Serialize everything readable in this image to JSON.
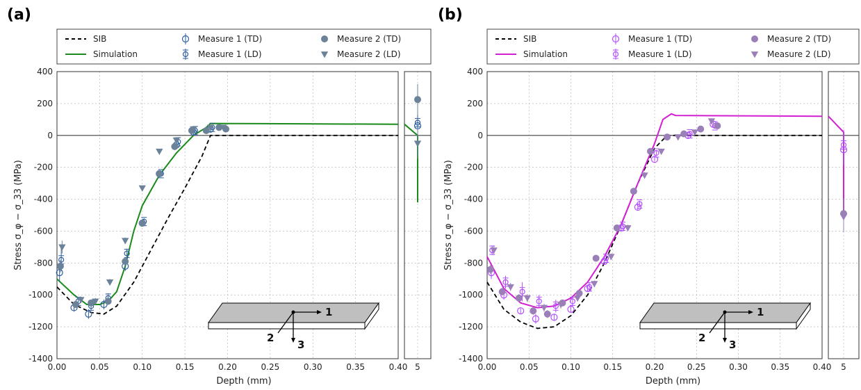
{
  "chart_data": [
    {
      "type": "line",
      "panel_label": "(a)",
      "xlabel": "Depth (mm)",
      "ylabel": "Stress σ_φ − σ_33 (MPa)",
      "ylim": [
        -1400,
        400
      ],
      "xlim_main": [
        0,
        0.4
      ],
      "x_break_tick": "5",
      "yticks": [
        "-1400",
        "-1200",
        "-1000",
        "-800",
        "-600",
        "-400",
        "-200",
        "0",
        "200",
        "400"
      ],
      "xticks": [
        "0.00",
        "0.05",
        "0.10",
        "0.15",
        "0.20",
        "0.25",
        "0.30",
        "0.35",
        "0.40"
      ],
      "grid": true,
      "legend_position": "top",
      "colors": {
        "simulation": "#1a8a1a",
        "measure": "#2e5e9e",
        "measure2": "#6b8299",
        "sib": "#000000"
      },
      "legend": [
        "SIB",
        "Simulation",
        "Measure 1 (TD)",
        "Measure 1 (LD)",
        "Measure 2 (TD)",
        "Measure 2 (LD)"
      ],
      "series": [
        {
          "name": "SIB",
          "style": "dashed",
          "x": [
            0.0,
            0.02,
            0.04,
            0.055,
            0.07,
            0.09,
            0.11,
            0.13,
            0.15,
            0.17,
            0.18,
            0.4
          ],
          "y": [
            -950,
            -1060,
            -1110,
            -1120,
            -1070,
            -920,
            -720,
            -520,
            -330,
            -130,
            0,
            0
          ],
          "x5": [],
          "y5": []
        },
        {
          "name": "Simulation",
          "style": "solid",
          "x": [
            0.0,
            0.02,
            0.035,
            0.05,
            0.06,
            0.07,
            0.08,
            0.09,
            0.1,
            0.12,
            0.14,
            0.16,
            0.175,
            0.18,
            0.4
          ],
          "y": [
            -900,
            -1000,
            -1060,
            -1060,
            -1040,
            -980,
            -820,
            -600,
            -440,
            -250,
            -110,
            0,
            50,
            75,
            70
          ],
          "x5": [
            5,
            5
          ],
          "y5": [
            0,
            -420
          ]
        },
        {
          "name": "Measure 1 (TD)",
          "marker": "circle-open",
          "x": [
            0.003,
            0.02,
            0.037,
            0.055,
            0.08,
            0.1,
            0.12,
            0.14,
            0.16,
            0.18
          ],
          "y": [
            -860,
            -1080,
            -1120,
            -1060,
            -820,
            -550,
            -240,
            -60,
            20,
            40
          ],
          "err": [
            60,
            25,
            30,
            30,
            30,
            20,
            20,
            20,
            15,
            15
          ],
          "x5": [
            5
          ],
          "y5": [
            60
          ]
        },
        {
          "name": "Measure 1 (LD)",
          "marker": "circle-bar",
          "x": [
            0.005,
            0.025,
            0.04,
            0.06,
            0.082,
            0.102,
            0.122,
            0.142,
            0.162,
            0.182
          ],
          "y": [
            -780,
            -1040,
            -1070,
            -1020,
            -740,
            -540,
            -240,
            -40,
            30,
            50
          ],
          "err": [
            70,
            25,
            30,
            30,
            30,
            20,
            20,
            20,
            15,
            15
          ],
          "x5": [
            5
          ],
          "y5": [
            80
          ]
        },
        {
          "name": "Measure 2 (TD)",
          "marker": "circle-filled",
          "x": [
            0.004,
            0.022,
            0.04,
            0.06,
            0.08,
            0.1,
            0.12,
            0.138,
            0.158,
            0.175,
            0.19,
            0.198
          ],
          "y": [
            -820,
            -1060,
            -1050,
            -1040,
            -790,
            -550,
            -240,
            -70,
            30,
            30,
            50,
            40
          ],
          "err": [
            40,
            20,
            20,
            20,
            20,
            15,
            15,
            15,
            10,
            10,
            10,
            10
          ],
          "x5": [
            5
          ],
          "y5": [
            225
          ]
        },
        {
          "name": "Measure 2 (LD)",
          "marker": "triangle-down",
          "x": [
            0.006,
            0.028,
            0.045,
            0.062,
            0.08,
            0.1,
            0.12,
            0.14,
            0.16,
            0.18,
            0.195
          ],
          "y": [
            -700,
            -1030,
            -1040,
            -920,
            -660,
            -330,
            -100,
            -30,
            40,
            50,
            50
          ],
          "err": [
            40,
            20,
            20,
            20,
            20,
            15,
            15,
            15,
            10,
            10,
            10
          ],
          "x5": [
            5
          ],
          "y5": [
            -50
          ]
        }
      ],
      "callout_labels": {
        "axis1": "1",
        "axis2": "2",
        "axis3": "3"
      }
    },
    {
      "type": "line",
      "panel_label": "(b)",
      "xlabel": "Depth (mm)",
      "ylabel": "Stress σ_φ − σ_33 (MPa)",
      "ylim": [
        -1400,
        400
      ],
      "xlim_main": [
        0,
        0.4
      ],
      "x_break_tick": "5",
      "yticks": [
        "-1400",
        "-1200",
        "-1000",
        "-800",
        "-600",
        "-400",
        "-200",
        "0",
        "200",
        "400"
      ],
      "xticks": [
        "0.00",
        "0.05",
        "0.10",
        "0.15",
        "0.20",
        "0.25",
        "0.30",
        "0.35",
        "0.40"
      ],
      "grid": true,
      "legend_position": "top",
      "colors": {
        "simulation": "#d21fd2",
        "measure": "#b34dff",
        "measure2": "#9a7fb8",
        "sib": "#000000"
      },
      "legend": [
        "SIB",
        "Simulation",
        "Measure 1 (TD)",
        "Measure 1 (LD)",
        "Measure 2 (TD)",
        "Measure 2 (LD)"
      ],
      "series": [
        {
          "name": "SIB",
          "style": "dashed",
          "x": [
            0.0,
            0.02,
            0.04,
            0.06,
            0.08,
            0.1,
            0.12,
            0.14,
            0.16,
            0.18,
            0.2,
            0.215,
            0.4
          ],
          "y": [
            -920,
            -1090,
            -1170,
            -1210,
            -1200,
            -1130,
            -1000,
            -800,
            -560,
            -300,
            -80,
            0,
            0
          ],
          "x5": [],
          "y5": []
        },
        {
          "name": "Simulation",
          "style": "solid",
          "x": [
            0.0,
            0.02,
            0.04,
            0.06,
            0.08,
            0.1,
            0.12,
            0.14,
            0.16,
            0.18,
            0.2,
            0.21,
            0.22,
            0.225,
            0.4
          ],
          "y": [
            -760,
            -960,
            -1050,
            -1080,
            -1070,
            -1020,
            -920,
            -760,
            -560,
            -300,
            -50,
            100,
            135,
            125,
            120
          ],
          "x5": [
            5,
            5,
            5
          ],
          "y5": [
            20,
            -80,
            -510
          ]
        },
        {
          "name": "Measure 1 (TD)",
          "marker": "circle-open",
          "x": [
            0.005,
            0.02,
            0.04,
            0.058,
            0.08,
            0.1,
            0.12,
            0.14,
            0.16,
            0.18,
            0.2,
            0.24,
            0.27
          ],
          "y": [
            -860,
            -1000,
            -1100,
            -1150,
            -1140,
            -1090,
            -960,
            -790,
            -580,
            -450,
            -150,
            0,
            70
          ],
          "err": [
            40,
            30,
            20,
            30,
            20,
            20,
            20,
            20,
            20,
            20,
            15,
            15,
            15
          ],
          "x5": [
            5
          ],
          "y5": [
            -90
          ]
        },
        {
          "name": "Measure 1 (LD)",
          "marker": "circle-bar",
          "x": [
            0.006,
            0.022,
            0.042,
            0.062,
            0.082,
            0.102,
            0.122,
            0.142,
            0.162,
            0.182,
            0.202,
            0.242,
            0.272
          ],
          "y": [
            -720,
            -920,
            -980,
            -1040,
            -1070,
            -1040,
            -950,
            -770,
            -570,
            -430,
            -110,
            10,
            60
          ],
          "err": [
            30,
            40,
            60,
            40,
            40,
            30,
            30,
            20,
            20,
            20,
            15,
            15,
            15
          ],
          "x5": [
            5
          ],
          "y5": [
            -60
          ]
        },
        {
          "name": "Measure 2 (TD)",
          "marker": "circle-filled",
          "x": [
            0.004,
            0.018,
            0.038,
            0.055,
            0.072,
            0.09,
            0.11,
            0.13,
            0.155,
            0.175,
            0.195,
            0.215,
            0.235,
            0.255,
            0.275
          ],
          "y": [
            -840,
            -980,
            -1020,
            -1100,
            -1120,
            -1050,
            -990,
            -770,
            -580,
            -350,
            -100,
            -10,
            10,
            40,
            60
          ],
          "err": [
            30,
            25,
            25,
            25,
            25,
            20,
            20,
            20,
            20,
            20,
            15,
            10,
            10,
            10,
            10
          ],
          "x5": [
            5
          ],
          "y5": [
            -490
          ]
        },
        {
          "name": "Measure 2 (LD)",
          "marker": "triangle-down",
          "x": [
            0.008,
            0.028,
            0.048,
            0.068,
            0.088,
            0.108,
            0.128,
            0.148,
            0.168,
            0.188,
            0.208,
            0.228,
            0.248,
            0.268
          ],
          "y": [
            -720,
            -950,
            -1020,
            -1080,
            -1060,
            -1020,
            -930,
            -760,
            -580,
            -250,
            -100,
            -10,
            20,
            90
          ],
          "err": [
            30,
            25,
            25,
            25,
            25,
            20,
            20,
            20,
            20,
            20,
            15,
            10,
            10,
            10
          ],
          "x5": [
            5
          ],
          "y5": [
            -510
          ]
        }
      ],
      "callout_labels": {
        "axis1": "1",
        "axis2": "2",
        "axis3": "3"
      }
    }
  ]
}
